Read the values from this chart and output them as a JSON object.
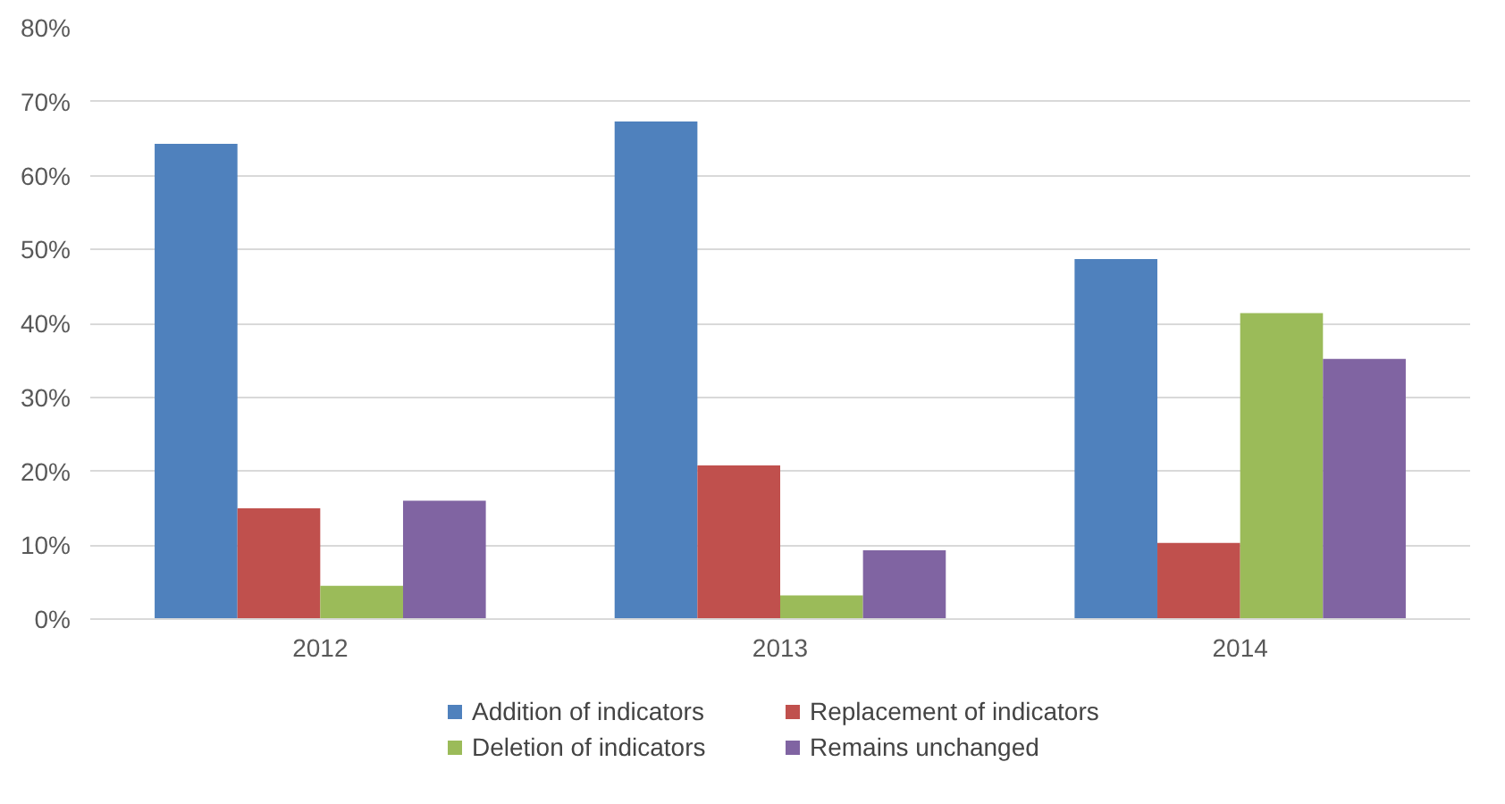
{
  "chart_data": {
    "type": "bar",
    "categories": [
      "2012",
      "2013",
      "2014"
    ],
    "series": [
      {
        "name": "Addition of indicators",
        "color": "#4f81bd",
        "values": [
          64.3,
          67.3,
          48.7
        ]
      },
      {
        "name": "Replacement of indicators",
        "color": "#c0504d",
        "values": [
          15,
          20.8,
          10.3
        ]
      },
      {
        "name": "Deletion of indicators",
        "color": "#9bbb59",
        "values": [
          4.5,
          3.2,
          41.4
        ]
      },
      {
        "name": "Remains unchanged",
        "color": "#8064a2",
        "values": [
          16,
          9.3,
          35.2
        ]
      }
    ],
    "ylim": [
      0,
      80
    ],
    "yticks": [
      {
        "value": 0,
        "label": "0%"
      },
      {
        "value": 10,
        "label": "10%"
      },
      {
        "value": 20,
        "label": "20%"
      },
      {
        "value": 30,
        "label": "30%"
      },
      {
        "value": 40,
        "label": "40%"
      },
      {
        "value": 50,
        "label": "50%"
      },
      {
        "value": 60,
        "label": "60%"
      },
      {
        "value": 70,
        "label": "70%"
      },
      {
        "value": 80,
        "label": "80%"
      }
    ],
    "grid": "y",
    "legend": "bottom"
  }
}
